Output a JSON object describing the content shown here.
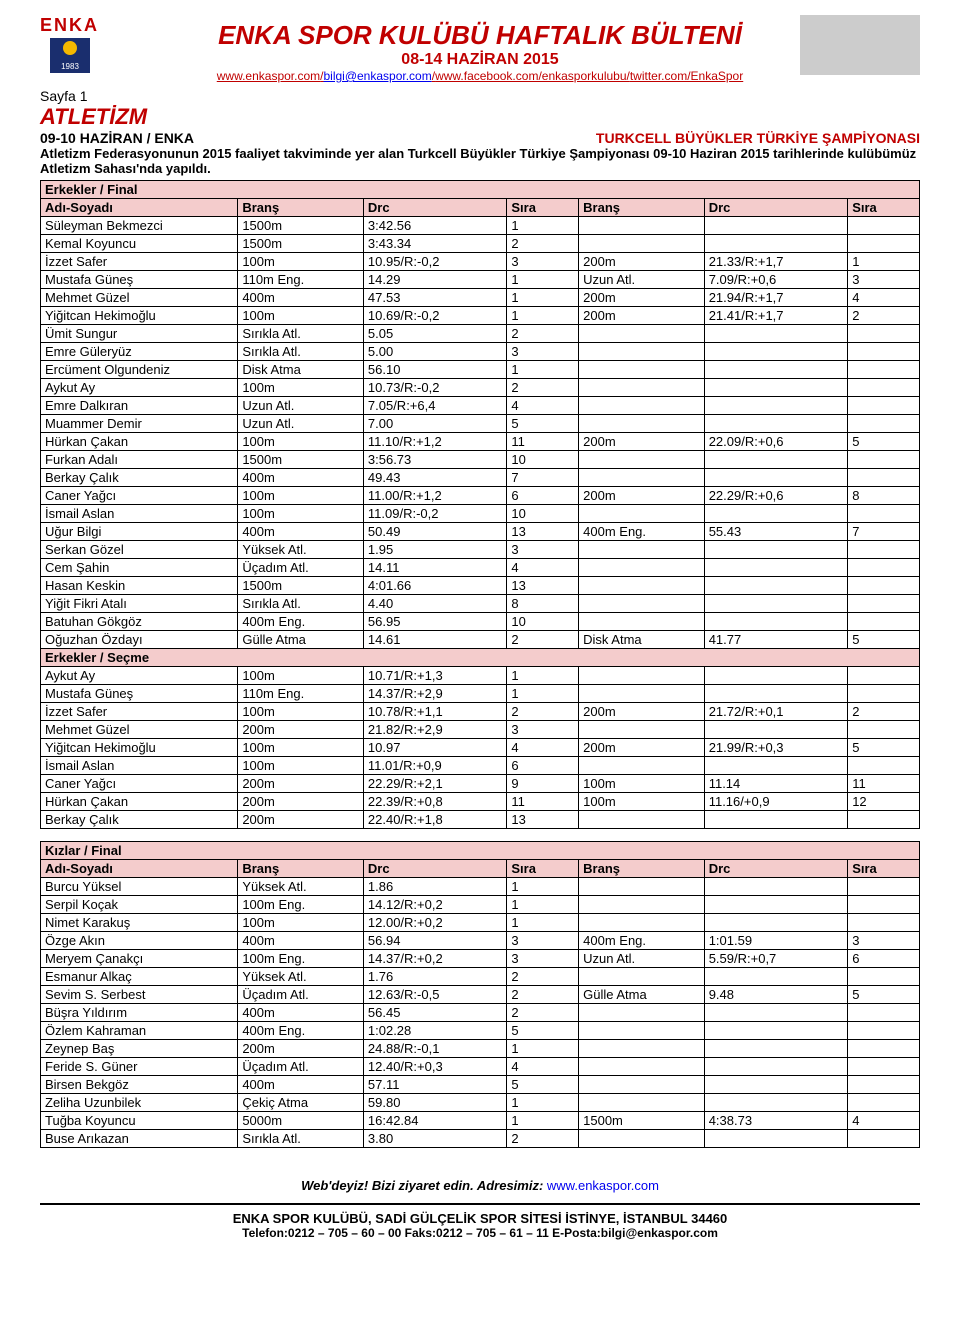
{
  "header": {
    "title": "ENKA SPOR KULÜBÜ HAFTALIK BÜLTENİ",
    "subtitle": "08-14 HAZİRAN 2015",
    "link1": "www.enkaspor.com",
    "link2": "bilgi@enkaspor.com",
    "link3": "www.facebook.com/enkasporkulubu",
    "link4": "twitter.com/EnkaSpor",
    "logo_text": "ENKA",
    "logo_year": "1983"
  },
  "page_label": "Sayfa 1",
  "section_title": "ATLETİZM",
  "event": {
    "left": "09-10 HAZİRAN / ENKA",
    "right": "TURKCELL BÜYÜKLER TÜRKİYE ŞAMPİYONASI",
    "desc": "Atletizm Federasyonunun 2015 faaliyet takviminde yer alan Turkcell Büyükler Türkiye Şampiyonası 09-10 Haziran 2015 tarihlerinde kulübümüz Atletizm Sahası'nda yapıldı."
  },
  "cols": [
    "Adı-Soyadı",
    "Branş",
    "Drc",
    "Sıra",
    "Branş",
    "Drc",
    "Sıra"
  ],
  "t1": {
    "section1": "Erkekler / Final",
    "section2": "Erkekler / Seçme",
    "rows1": [
      [
        "Süleyman Bekmezci",
        "1500m",
        "3:42.56",
        "1",
        "",
        "",
        ""
      ],
      [
        "Kemal Koyuncu",
        "1500m",
        "3:43.34",
        "2",
        "",
        "",
        ""
      ],
      [
        "İzzet Safer",
        "100m",
        "10.95/R:-0,2",
        "3",
        "200m",
        "21.33/R:+1,7",
        "1"
      ],
      [
        "Mustafa Güneş",
        "110m Eng.",
        "14.29",
        "1",
        "Uzun Atl.",
        "7.09/R:+0,6",
        "3"
      ],
      [
        "Mehmet Güzel",
        "400m",
        "47.53",
        "1",
        "200m",
        "21.94/R:+1,7",
        "4"
      ],
      [
        "Yiğitcan Hekimoğlu",
        "100m",
        "10.69/R:-0,2",
        "1",
        "200m",
        "21.41/R:+1,7",
        "2"
      ],
      [
        "Ümit Sungur",
        "Sırıkla Atl.",
        "5.05",
        "2",
        "",
        "",
        ""
      ],
      [
        "Emre Güleryüz",
        "Sırıkla Atl.",
        "5.00",
        "3",
        "",
        "",
        ""
      ],
      [
        "Ercüment Olgundeniz",
        "Disk Atma",
        "56.10",
        "1",
        "",
        "",
        ""
      ],
      [
        "Aykut Ay",
        "100m",
        "10.73/R:-0,2",
        "2",
        "",
        "",
        ""
      ],
      [
        "Emre Dalkıran",
        "Uzun Atl.",
        "7.05/R:+6,4",
        "4",
        "",
        "",
        ""
      ],
      [
        "Muammer Demir",
        "Uzun Atl.",
        "7.00",
        "5",
        "",
        "",
        ""
      ],
      [
        "Hürkan Çakan",
        "100m",
        "11.10/R:+1,2",
        "11",
        "200m",
        "22.09/R:+0,6",
        "5"
      ],
      [
        "Furkan Adalı",
        "1500m",
        "3:56.73",
        "10",
        "",
        "",
        ""
      ],
      [
        "Berkay Çalık",
        "400m",
        "49.43",
        "7",
        "",
        "",
        ""
      ],
      [
        "Caner Yağcı",
        "100m",
        "11.00/R:+1,2",
        "6",
        "200m",
        "22.29/R:+0,6",
        "8"
      ],
      [
        "İsmail Aslan",
        "100m",
        "11.09/R:-0,2",
        "10",
        "",
        "",
        ""
      ],
      [
        "Uğur Bilgi",
        "400m",
        "50.49",
        "13",
        "400m Eng.",
        "55.43",
        "7"
      ],
      [
        "Serkan Gözel",
        "Yüksek Atl.",
        "1.95",
        "3",
        "",
        "",
        ""
      ],
      [
        "Cem Şahin",
        "Üçadım Atl.",
        "14.11",
        "4",
        "",
        "",
        ""
      ],
      [
        "Hasan Keskin",
        "1500m",
        "4:01.66",
        "13",
        "",
        "",
        ""
      ],
      [
        "Yiğit Fikri Atalı",
        "Sırıkla Atl.",
        "4.40",
        "8",
        "",
        "",
        ""
      ],
      [
        "Batuhan Gökgöz",
        "400m Eng.",
        "56.95",
        "10",
        "",
        "",
        ""
      ],
      [
        "Oğuzhan Özdayı",
        "Gülle Atma",
        "14.61",
        "2",
        "Disk Atma",
        "41.77",
        "5"
      ]
    ],
    "rows2": [
      [
        "Aykut Ay",
        "100m",
        "10.71/R:+1,3",
        "1",
        "",
        "",
        ""
      ],
      [
        "Mustafa Güneş",
        "110m Eng.",
        "14.37/R:+2,9",
        "1",
        "",
        "",
        ""
      ],
      [
        "İzzet Safer",
        "100m",
        "10.78/R:+1,1",
        "2",
        "200m",
        "21.72/R:+0,1",
        "2"
      ],
      [
        "Mehmet Güzel",
        "200m",
        "21.82/R:+2,9",
        "3",
        "",
        "",
        ""
      ],
      [
        "Yiğitcan Hekimoğlu",
        "100m",
        "10.97",
        "4",
        "200m",
        "21.99/R:+0,3",
        "5"
      ],
      [
        "İsmail Aslan",
        "100m",
        "11.01/R:+0,9",
        "6",
        "",
        "",
        ""
      ],
      [
        "Caner Yağcı",
        "200m",
        "22.29/R:+2,1",
        "9",
        "100m",
        "11.14",
        "11"
      ],
      [
        "Hürkan Çakan",
        "200m",
        "22.39/R:+0,8",
        "11",
        "100m",
        "11.16/+0,9",
        "12"
      ],
      [
        "Berkay Çalık",
        "200m",
        "22.40/R:+1,8",
        "13",
        "",
        "",
        ""
      ]
    ]
  },
  "t2": {
    "section": "Kızlar / Final",
    "rows": [
      [
        "Burcu Yüksel",
        "Yüksek Atl.",
        "1.86",
        "1",
        "",
        "",
        ""
      ],
      [
        "Serpil Koçak",
        "100m Eng.",
        "14.12/R:+0,2",
        "1",
        "",
        "",
        ""
      ],
      [
        "Nimet Karakuş",
        "100m",
        "12.00/R:+0,2",
        "1",
        "",
        "",
        ""
      ],
      [
        "Özge Akın",
        "400m",
        "56.94",
        "3",
        "400m Eng.",
        "1:01.59",
        "3"
      ],
      [
        "Meryem Çanakçı",
        "100m Eng.",
        "14.37/R:+0,2",
        "3",
        "Uzun Atl.",
        "5.59/R:+0,7",
        "6"
      ],
      [
        "Esmanur Alkaç",
        "Yüksek Atl.",
        "1.76",
        "2",
        "",
        "",
        ""
      ],
      [
        "Sevim S. Serbest",
        "Üçadım Atl.",
        "12.63/R:-0,5",
        "2",
        "Gülle Atma",
        "9.48",
        "5"
      ],
      [
        "Büşra Yıldırım",
        "400m",
        "56.45",
        "2",
        "",
        "",
        ""
      ],
      [
        "Özlem Kahraman",
        "400m Eng.",
        "1:02.28",
        "5",
        "",
        "",
        ""
      ],
      [
        "Zeynep Baş",
        "200m",
        "24.88/R:-0,1",
        "1",
        "",
        "",
        ""
      ],
      [
        "Feride S. Güner",
        "Üçadım Atl.",
        "12.40/R:+0,3",
        "4",
        "",
        "",
        ""
      ],
      [
        "Birsen Bekgöz",
        "400m",
        "57.11",
        "5",
        "",
        "",
        ""
      ],
      [
        "Zeliha Uzunbilek",
        "Çekiç Atma",
        "59.80",
        "1",
        "",
        "",
        ""
      ],
      [
        "Tuğba Koyuncu",
        "5000m",
        "16:42.84",
        "1",
        "1500m",
        "4:38.73",
        "4"
      ],
      [
        "Buse Arıkazan",
        "Sırıkla Atl.",
        "3.80",
        "2",
        "",
        "",
        ""
      ]
    ]
  },
  "footer": {
    "visit1": "Web'deyiz! Bizi ziyaret edin. Adresimiz:",
    "visit2": "www.enkaspor.com",
    "line1a": "ENKA SPOR KULÜBÜ,",
    "line1b": " SADİ GÜLÇELİK SPOR SİTESİ İSTİNYE, İSTANBUL 34460",
    "line2": "Telefon:0212 – 705 – 60 – 00    Faks:0212 – 705 – 61 – 11    E-Posta:bilgi@enkaspor.com"
  }
}
